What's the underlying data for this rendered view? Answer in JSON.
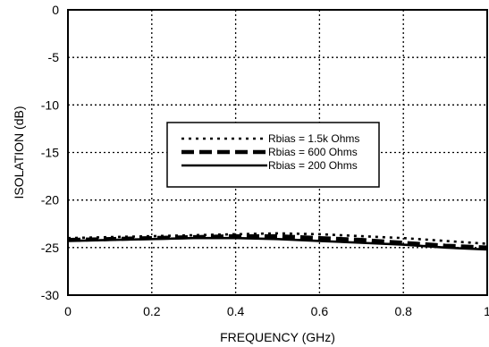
{
  "chart_data": {
    "type": "line",
    "xlabel": "FREQUENCY (GHz)",
    "ylabel": "ISOLATION (dB)",
    "xlim": [
      0,
      1
    ],
    "ylim": [
      -30,
      0
    ],
    "x_ticks": [
      "0",
      "0.2",
      "0.4",
      "0.6",
      "0.8",
      "1"
    ],
    "y_ticks": [
      "0",
      "-5",
      "-10",
      "-15",
      "-20",
      "-25",
      "-30"
    ],
    "grid": true,
    "legend_position": "center",
    "series": [
      {
        "name": "Rbias = 1.5k Ohms",
        "style": "dotted",
        "x": [
          0,
          0.1,
          0.2,
          0.3,
          0.4,
          0.5,
          0.6,
          0.7,
          0.8,
          0.9,
          1.0
        ],
        "y": [
          -24.0,
          -23.9,
          -23.8,
          -23.7,
          -23.6,
          -23.5,
          -23.6,
          -23.8,
          -24.0,
          -24.3,
          -24.6
        ]
      },
      {
        "name": "Rbias = 600 Ohms",
        "style": "dashed",
        "x": [
          0,
          0.1,
          0.2,
          0.3,
          0.4,
          0.5,
          0.6,
          0.7,
          0.8,
          0.9,
          1.0
        ],
        "y": [
          -24.2,
          -24.1,
          -24.0,
          -23.9,
          -23.8,
          -23.8,
          -24.0,
          -24.2,
          -24.5,
          -24.8,
          -25.0
        ]
      },
      {
        "name": "Rbias = 200 Ohms",
        "style": "solid",
        "x": [
          0,
          0.1,
          0.2,
          0.3,
          0.4,
          0.5,
          0.6,
          0.7,
          0.8,
          0.9,
          1.0
        ],
        "y": [
          -24.3,
          -24.2,
          -24.1,
          -24.0,
          -24.0,
          -24.1,
          -24.3,
          -24.5,
          -24.7,
          -25.0,
          -25.2
        ]
      }
    ]
  }
}
